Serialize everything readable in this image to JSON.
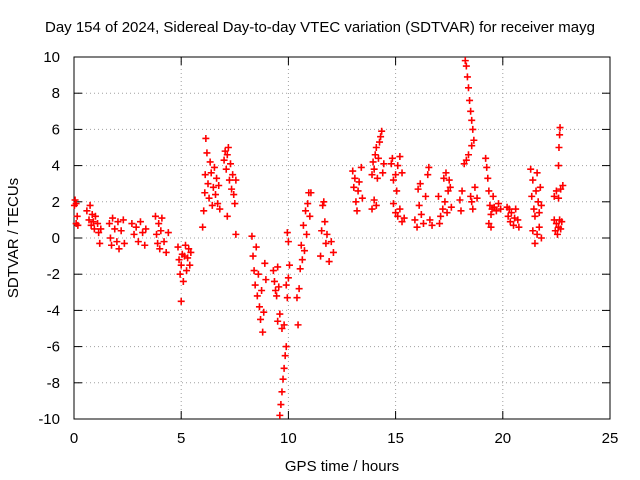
{
  "chart_data": {
    "type": "scatter",
    "title": "Day 154 of 2024, Sidereal Day-to-day VTEC variation (SDTVAR) for receiver mayg",
    "xlabel": "GPS time / hours",
    "ylabel": "SDTVAR / TECUs",
    "xlim": [
      0,
      25
    ],
    "ylim": [
      -10,
      10
    ],
    "x_ticks": [
      0,
      5,
      10,
      15,
      20,
      25
    ],
    "y_ticks": [
      -10,
      -8,
      -6,
      -4,
      -2,
      0,
      2,
      4,
      6,
      8,
      10
    ],
    "grid": true,
    "marker": "+",
    "marker_color": "#ff0000",
    "series": [
      {
        "name": "SDTVAR",
        "points": [
          [
            0.02,
            1.8
          ],
          [
            0.05,
            2.1
          ],
          [
            0.1,
            1.9
          ],
          [
            0.15,
            1.2
          ],
          [
            0.18,
            0.7
          ],
          [
            0.1,
            0.8
          ],
          [
            0.6,
            1.5
          ],
          [
            0.7,
            1.0
          ],
          [
            0.75,
            1.8
          ],
          [
            0.8,
            0.7
          ],
          [
            0.85,
            1.3
          ],
          [
            0.9,
            0.9
          ],
          [
            0.95,
            0.5
          ],
          [
            1.0,
            1.2
          ],
          [
            1.1,
            0.8
          ],
          [
            1.15,
            0.3
          ],
          [
            1.2,
            -0.3
          ],
          [
            1.25,
            0.5
          ],
          [
            1.65,
            0.8
          ],
          [
            1.7,
            0.0
          ],
          [
            1.75,
            -0.4
          ],
          [
            1.8,
            1.1
          ],
          [
            1.9,
            0.5
          ],
          [
            2.0,
            -0.2
          ],
          [
            2.05,
            0.9
          ],
          [
            2.1,
            -0.6
          ],
          [
            2.2,
            0.4
          ],
          [
            2.3,
            1.0
          ],
          [
            2.35,
            -0.3
          ],
          [
            2.7,
            0.8
          ],
          [
            2.8,
            0.2
          ],
          [
            2.9,
            0.6
          ],
          [
            3.0,
            -0.2
          ],
          [
            3.1,
            0.9
          ],
          [
            3.2,
            0.3
          ],
          [
            3.3,
            -0.4
          ],
          [
            3.35,
            0.5
          ],
          [
            3.8,
            1.2
          ],
          [
            3.85,
            0.2
          ],
          [
            3.9,
            -0.3
          ],
          [
            3.95,
            0.8
          ],
          [
            4.0,
            -0.6
          ],
          [
            4.05,
            0.4
          ],
          [
            4.1,
            1.1
          ],
          [
            4.2,
            -0.2
          ],
          [
            4.3,
            -0.8
          ],
          [
            4.4,
            0.3
          ],
          [
            4.85,
            -0.5
          ],
          [
            4.9,
            -1.2
          ],
          [
            4.95,
            -2.0
          ],
          [
            5.0,
            -1.5
          ],
          [
            5.05,
            -0.9
          ],
          [
            5.1,
            -2.4
          ],
          [
            5.15,
            -1.0
          ],
          [
            5.2,
            -0.4
          ],
          [
            5.25,
            -1.8
          ],
          [
            5.3,
            -1.1
          ],
          [
            5.35,
            -0.6
          ],
          [
            5.4,
            -1.5
          ],
          [
            5.45,
            -0.8
          ],
          [
            5.0,
            -3.5
          ],
          [
            6.0,
            0.6
          ],
          [
            6.05,
            1.5
          ],
          [
            6.1,
            2.5
          ],
          [
            6.12,
            3.5
          ],
          [
            6.15,
            5.5
          ],
          [
            6.2,
            4.7
          ],
          [
            6.25,
            3.0
          ],
          [
            6.3,
            2.2
          ],
          [
            6.35,
            4.2
          ],
          [
            6.4,
            3.6
          ],
          [
            6.45,
            1.8
          ],
          [
            6.5,
            2.8
          ],
          [
            6.55,
            3.9
          ],
          [
            6.6,
            2.4
          ],
          [
            6.65,
            3.3
          ],
          [
            6.7,
            1.9
          ],
          [
            6.75,
            2.9
          ],
          [
            6.8,
            1.6
          ],
          [
            7.0,
            4.3
          ],
          [
            7.05,
            4.8
          ],
          [
            7.1,
            3.8
          ],
          [
            7.15,
            4.6
          ],
          [
            7.2,
            5.0
          ],
          [
            7.25,
            3.2
          ],
          [
            7.3,
            4.1
          ],
          [
            7.35,
            2.7
          ],
          [
            7.4,
            3.5
          ],
          [
            7.45,
            2.4
          ],
          [
            7.5,
            1.9
          ],
          [
            7.55,
            3.2
          ],
          [
            7.15,
            1.2
          ],
          [
            7.55,
            0.2
          ],
          [
            8.3,
            0.1
          ],
          [
            8.35,
            -1.0
          ],
          [
            8.4,
            -1.8
          ],
          [
            8.45,
            -2.6
          ],
          [
            8.5,
            -0.5
          ],
          [
            8.55,
            -3.2
          ],
          [
            8.6,
            -2.0
          ],
          [
            8.65,
            -3.8
          ],
          [
            8.7,
            -4.5
          ],
          [
            8.75,
            -2.9
          ],
          [
            8.8,
            -5.2
          ],
          [
            8.85,
            -4.1
          ],
          [
            8.9,
            -1.4
          ],
          [
            8.95,
            -2.3
          ],
          [
            9.3,
            -1.8
          ],
          [
            9.35,
            -2.4
          ],
          [
            9.4,
            -2.9
          ],
          [
            9.45,
            -3.2
          ],
          [
            9.5,
            -1.6
          ],
          [
            9.55,
            -2.7
          ],
          [
            9.5,
            -4.6
          ],
          [
            9.6,
            -4.2
          ],
          [
            9.7,
            -5.0
          ],
          [
            9.8,
            -4.8
          ],
          [
            9.6,
            -9.8
          ],
          [
            9.65,
            -9.2
          ],
          [
            9.7,
            -8.5
          ],
          [
            9.75,
            -7.8
          ],
          [
            9.8,
            -7.2
          ],
          [
            9.85,
            -6.5
          ],
          [
            9.9,
            -6.0
          ],
          [
            9.9,
            -2.6
          ],
          [
            9.95,
            -3.3
          ],
          [
            10.0,
            -2.2
          ],
          [
            10.05,
            -1.5
          ],
          [
            9.95,
            0.3
          ],
          [
            10.0,
            -0.2
          ],
          [
            10.4,
            -3.3
          ],
          [
            10.45,
            -4.8
          ],
          [
            10.5,
            -2.8
          ],
          [
            10.55,
            -1.7
          ],
          [
            10.6,
            -0.4
          ],
          [
            10.65,
            -1.2
          ],
          [
            10.7,
            0.7
          ],
          [
            10.75,
            -0.7
          ],
          [
            10.8,
            1.5
          ],
          [
            10.85,
            0.2
          ],
          [
            10.9,
            1.9
          ],
          [
            10.95,
            2.5
          ],
          [
            11.0,
            1.2
          ],
          [
            11.05,
            2.5
          ],
          [
            11.5,
            -1.0
          ],
          [
            11.55,
            0.4
          ],
          [
            11.6,
            1.8
          ],
          [
            11.65,
            2.0
          ],
          [
            11.7,
            0.9
          ],
          [
            11.75,
            -0.3
          ],
          [
            11.8,
            0.2
          ],
          [
            11.9,
            -1.3
          ],
          [
            12.0,
            -0.2
          ],
          [
            12.1,
            -0.8
          ],
          [
            13.0,
            3.7
          ],
          [
            13.05,
            2.8
          ],
          [
            13.1,
            3.3
          ],
          [
            13.15,
            2.0
          ],
          [
            13.2,
            1.5
          ],
          [
            13.25,
            2.6
          ],
          [
            13.3,
            3.1
          ],
          [
            13.4,
            3.9
          ],
          [
            13.45,
            2.2
          ],
          [
            13.9,
            3.5
          ],
          [
            13.95,
            4.2
          ],
          [
            14.0,
            3.8
          ],
          [
            14.05,
            4.6
          ],
          [
            14.1,
            5.0
          ],
          [
            14.15,
            3.3
          ],
          [
            14.2,
            4.4
          ],
          [
            14.25,
            5.3
          ],
          [
            14.3,
            5.6
          ],
          [
            14.35,
            5.9
          ],
          [
            14.4,
            3.6
          ],
          [
            14.45,
            4.1
          ],
          [
            13.9,
            1.6
          ],
          [
            14.0,
            2.1
          ],
          [
            14.1,
            1.8
          ],
          [
            14.8,
            4.1
          ],
          [
            14.85,
            4.4
          ],
          [
            14.9,
            3.2
          ],
          [
            15.0,
            3.5
          ],
          [
            15.05,
            2.6
          ],
          [
            15.1,
            4.0
          ],
          [
            15.2,
            4.5
          ],
          [
            15.3,
            3.6
          ],
          [
            14.9,
            1.9
          ],
          [
            15.0,
            1.4
          ],
          [
            15.1,
            1.2
          ],
          [
            15.2,
            1.6
          ],
          [
            15.3,
            0.9
          ],
          [
            15.4,
            1.1
          ],
          [
            15.9,
            1.0
          ],
          [
            16.0,
            0.6
          ],
          [
            16.05,
            2.7
          ],
          [
            16.1,
            1.8
          ],
          [
            16.15,
            3.0
          ],
          [
            16.2,
            1.3
          ],
          [
            16.3,
            0.8
          ],
          [
            16.4,
            2.3
          ],
          [
            16.5,
            3.5
          ],
          [
            16.55,
            3.9
          ],
          [
            16.6,
            1.0
          ],
          [
            16.7,
            0.7
          ],
          [
            17.0,
            2.3
          ],
          [
            17.05,
            0.8
          ],
          [
            17.1,
            1.2
          ],
          [
            17.2,
            1.6
          ],
          [
            17.25,
            3.3
          ],
          [
            17.3,
            2.0
          ],
          [
            17.35,
            3.6
          ],
          [
            17.4,
            1.4
          ],
          [
            17.45,
            2.6
          ],
          [
            17.5,
            3.2
          ],
          [
            17.55,
            2.8
          ],
          [
            17.6,
            1.7
          ],
          [
            18.0,
            2.1
          ],
          [
            18.05,
            1.5
          ],
          [
            18.1,
            2.6
          ],
          [
            18.2,
            4.1
          ],
          [
            18.25,
            9.8
          ],
          [
            18.3,
            9.5
          ],
          [
            18.35,
            8.9
          ],
          [
            18.4,
            8.3
          ],
          [
            18.45,
            7.6
          ],
          [
            18.5,
            7.0
          ],
          [
            18.55,
            6.5
          ],
          [
            18.6,
            6.0
          ],
          [
            18.65,
            5.4
          ],
          [
            18.55,
            5.1
          ],
          [
            18.4,
            4.6
          ],
          [
            18.3,
            4.3
          ],
          [
            18.5,
            2.3
          ],
          [
            18.55,
            2.0
          ],
          [
            18.6,
            1.6
          ],
          [
            18.7,
            2.8
          ],
          [
            18.8,
            2.2
          ],
          [
            19.2,
            4.4
          ],
          [
            19.25,
            3.9
          ],
          [
            19.3,
            3.3
          ],
          [
            19.35,
            2.6
          ],
          [
            19.4,
            1.8
          ],
          [
            19.45,
            1.3
          ],
          [
            19.5,
            1.6
          ],
          [
            19.55,
            2.3
          ],
          [
            19.6,
            1.7
          ],
          [
            19.7,
            1.5
          ],
          [
            19.8,
            1.9
          ],
          [
            19.9,
            1.6
          ],
          [
            19.35,
            0.8
          ],
          [
            19.45,
            0.6
          ],
          [
            20.2,
            1.7
          ],
          [
            20.25,
            1.2
          ],
          [
            20.3,
            1.6
          ],
          [
            20.35,
            0.9
          ],
          [
            20.4,
            1.4
          ],
          [
            20.5,
            0.7
          ],
          [
            20.55,
            1.1
          ],
          [
            20.6,
            1.6
          ],
          [
            20.7,
            1.0
          ],
          [
            20.75,
            0.6
          ],
          [
            21.3,
            3.8
          ],
          [
            21.35,
            2.3
          ],
          [
            21.4,
            3.2
          ],
          [
            21.45,
            1.6
          ],
          [
            21.5,
            1.2
          ],
          [
            21.55,
            2.6
          ],
          [
            21.6,
            3.6
          ],
          [
            21.65,
            2.0
          ],
          [
            21.7,
            1.4
          ],
          [
            21.75,
            2.8
          ],
          [
            21.8,
            1.8
          ],
          [
            21.4,
            0.4
          ],
          [
            21.5,
            -0.3
          ],
          [
            21.6,
            0.2
          ],
          [
            21.7,
            0.6
          ],
          [
            21.8,
            0.0
          ],
          [
            22.4,
            2.3
          ],
          [
            22.5,
            2.6
          ],
          [
            22.6,
            2.2
          ],
          [
            22.7,
            2.7
          ],
          [
            22.8,
            2.9
          ],
          [
            22.6,
            4.0
          ],
          [
            22.62,
            5.0
          ],
          [
            22.65,
            5.7
          ],
          [
            22.67,
            6.1
          ],
          [
            22.4,
            1.0
          ],
          [
            22.45,
            0.4
          ],
          [
            22.5,
            0.8
          ],
          [
            22.55,
            0.2
          ],
          [
            22.6,
            0.6
          ],
          [
            22.65,
            1.0
          ],
          [
            22.7,
            0.5
          ],
          [
            22.75,
            0.9
          ]
        ]
      }
    ]
  }
}
